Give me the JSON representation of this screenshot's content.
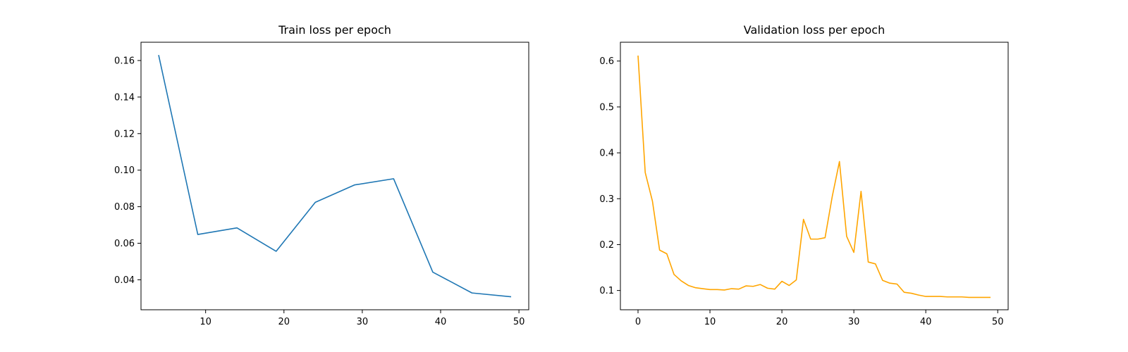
{
  "chart_data": [
    {
      "type": "line",
      "title": "Train loss per epoch",
      "xlabel": "",
      "ylabel": "",
      "xlim": [
        1.75,
        51.25
      ],
      "ylim": [
        0.0236,
        0.17
      ],
      "xticks": [
        10,
        20,
        30,
        40,
        50
      ],
      "yticks": [
        0.04,
        0.06,
        0.08,
        0.1,
        0.12,
        0.14,
        0.16
      ],
      "ytick_labels": [
        "0.04",
        "0.06",
        "0.08",
        "0.10",
        "0.12",
        "0.14",
        "0.16"
      ],
      "grid": false,
      "series": [
        {
          "color": "#1f77b4",
          "x": [
            4,
            9,
            14,
            19,
            24,
            29,
            34,
            39,
            44,
            49
          ],
          "y": [
            0.163,
            0.0648,
            0.0684,
            0.0556,
            0.0824,
            0.0919,
            0.0953,
            0.0442,
            0.0328,
            0.0307
          ]
        }
      ]
    },
    {
      "type": "line",
      "title": "Validation loss per epoch",
      "xlabel": "",
      "ylabel": "",
      "xlim": [
        -2.45,
        51.45
      ],
      "ylim": [
        0.058,
        0.641
      ],
      "xticks": [
        0,
        10,
        20,
        30,
        40,
        50
      ],
      "yticks": [
        0.1,
        0.2,
        0.3,
        0.4,
        0.5,
        0.6
      ],
      "ytick_labels": [
        "0.1",
        "0.2",
        "0.3",
        "0.4",
        "0.5",
        "0.6"
      ],
      "grid": false,
      "series": [
        {
          "color": "#ffa500",
          "x": [
            0,
            1,
            2,
            3,
            4,
            5,
            6,
            7,
            8,
            9,
            10,
            11,
            12,
            13,
            14,
            15,
            16,
            17,
            18,
            19,
            20,
            21,
            22,
            23,
            24,
            25,
            26,
            27,
            28,
            29,
            30,
            31,
            32,
            33,
            34,
            35,
            36,
            37,
            38,
            39,
            40,
            41,
            42,
            43,
            44,
            45,
            46,
            47,
            48,
            49
          ],
          "y": [
            0.612,
            0.357,
            0.295,
            0.188,
            0.18,
            0.135,
            0.121,
            0.111,
            0.106,
            0.104,
            0.102,
            0.102,
            0.101,
            0.104,
            0.103,
            0.11,
            0.109,
            0.113,
            0.105,
            0.103,
            0.12,
            0.111,
            0.123,
            0.255,
            0.212,
            0.212,
            0.215,
            0.305,
            0.381,
            0.218,
            0.183,
            0.316,
            0.162,
            0.158,
            0.122,
            0.116,
            0.114,
            0.096,
            0.094,
            0.09,
            0.087,
            0.087,
            0.087,
            0.086,
            0.086,
            0.086,
            0.085,
            0.085,
            0.085,
            0.085
          ]
        }
      ]
    }
  ]
}
